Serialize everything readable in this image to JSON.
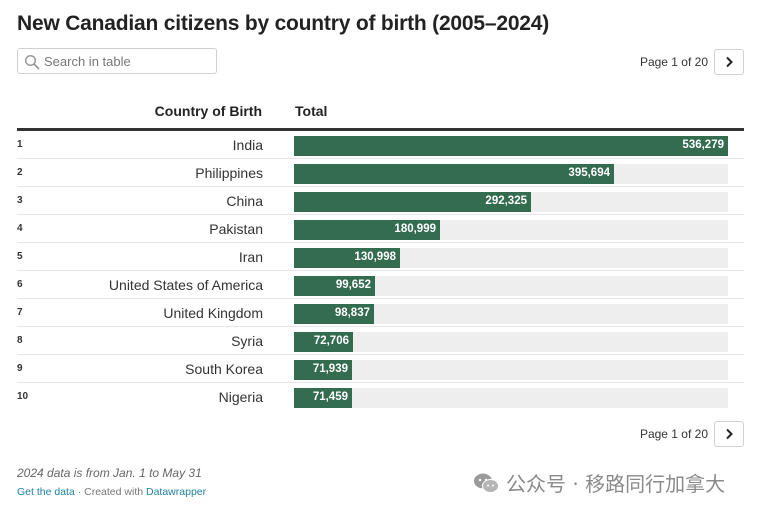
{
  "title": "New Canadian citizens by country of birth (2005–2024)",
  "search": {
    "placeholder": "Search in table",
    "icon": "search-icon"
  },
  "pagination": {
    "label": "Page 1 of 20",
    "next_icon": "chevron-right-icon"
  },
  "columns": {
    "country": "Country of Birth",
    "total": "Total"
  },
  "colors": {
    "bar": "#336c4f",
    "track": "#eeeeee",
    "link": "#1d81a2"
  },
  "chart_data": {
    "type": "table",
    "columns": [
      "Country of Birth",
      "Total"
    ],
    "ranks": [
      "1",
      "2",
      "3",
      "4",
      "5",
      "6",
      "7",
      "8",
      "9",
      "10"
    ],
    "categories": [
      "India",
      "Philippines",
      "China",
      "Pakistan",
      "Iran",
      "United States of America",
      "United Kingdom",
      "Syria",
      "South Korea",
      "Nigeria"
    ],
    "values": [
      536279,
      395694,
      292325,
      180999,
      130998,
      99652,
      98837,
      72706,
      71939,
      71459
    ],
    "value_labels": [
      "536,279",
      "395,694",
      "292,325",
      "180,999",
      "130,998",
      "99,652",
      "98,837",
      "72,706",
      "71,939",
      "71,459"
    ],
    "xlim": [
      0,
      536279
    ]
  },
  "notes": "2024 data is from Jan. 1 to May 31",
  "footer": {
    "get_data": "Get the data",
    "separator": "· Created with",
    "tool": "Datawrapper"
  },
  "watermark": {
    "text": "公众号 · 移路同行加拿大",
    "icon": "wechat-icon"
  }
}
